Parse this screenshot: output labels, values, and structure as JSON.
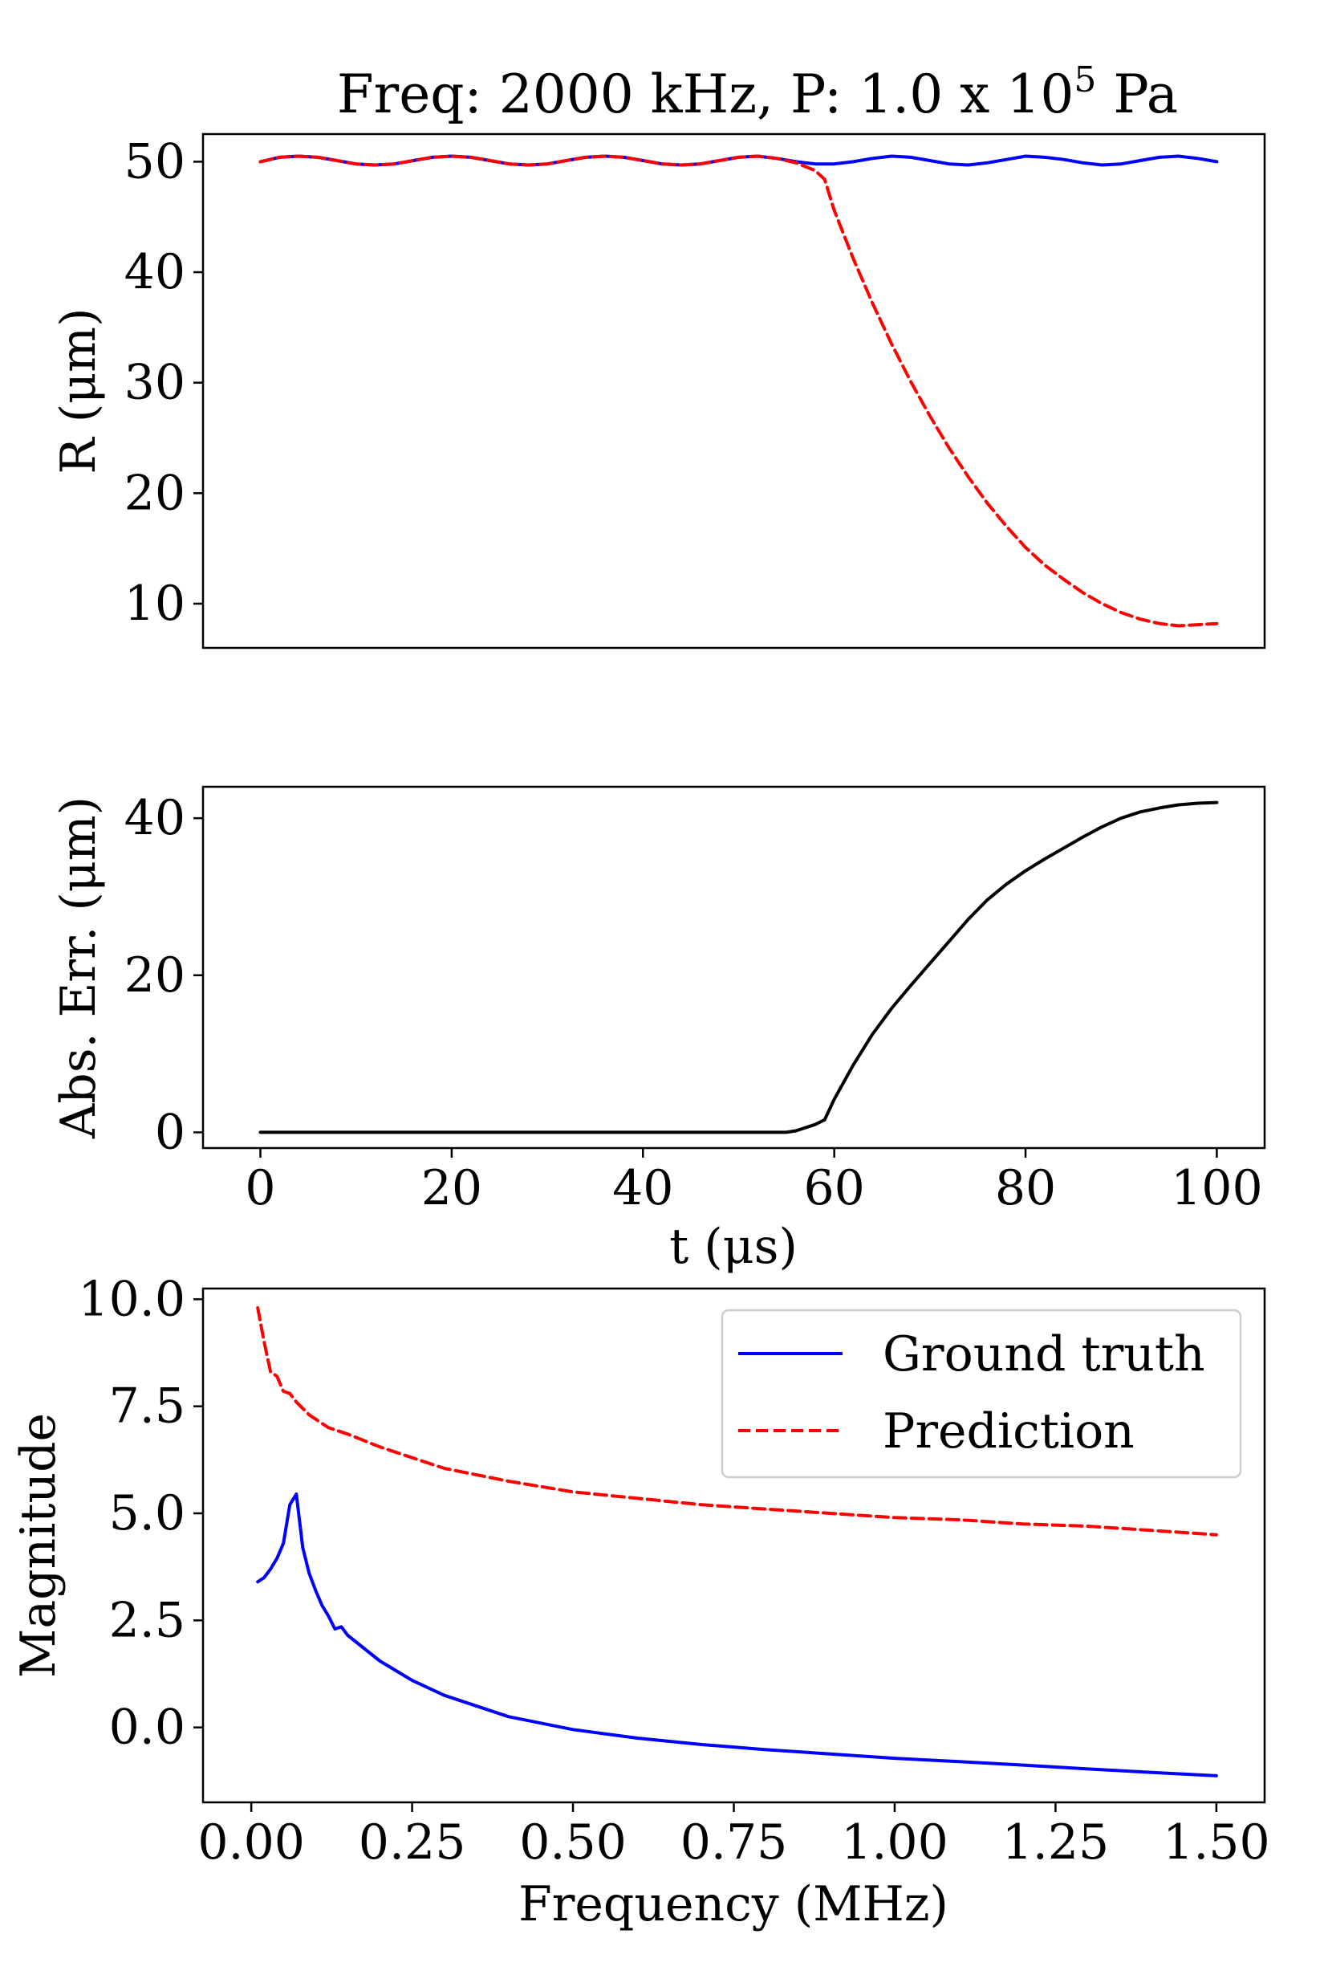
{
  "figure": {
    "title_prefix": "Freq: 2000 kHz, P: 1.0 x ",
    "title_base": "10",
    "title_exponent": "5",
    "title_suffix": " Pa"
  },
  "colors": {
    "ground_truth": "#0000ff",
    "prediction": "#ff0000",
    "abs_error": "#000000"
  },
  "chart_data": [
    {
      "type": "line",
      "name": "radius",
      "title": "Freq: 2000 kHz, P: 1.0 x 10^5 Pa",
      "xlabel": "",
      "ylabel": "R (μm)",
      "xlim": [
        -6,
        105
      ],
      "ylim": [
        6,
        52.5
      ],
      "xticks": [],
      "yticks": [
        10,
        20,
        30,
        40,
        50
      ],
      "ytick_labels": [
        "10",
        "20",
        "30",
        "40",
        "50"
      ],
      "series": [
        {
          "name": "Ground truth",
          "style": "solid",
          "x": [
            0,
            2,
            4,
            6,
            8,
            10,
            12,
            14,
            16,
            18,
            20,
            22,
            24,
            26,
            28,
            30,
            32,
            34,
            36,
            38,
            40,
            42,
            44,
            46,
            48,
            50,
            52,
            54,
            56,
            58,
            60,
            62,
            64,
            66,
            68,
            70,
            72,
            74,
            76,
            78,
            80,
            82,
            84,
            86,
            88,
            90,
            92,
            94,
            96,
            98,
            100
          ],
          "values": [
            50.0,
            50.4,
            50.5,
            50.4,
            50.1,
            49.8,
            49.7,
            49.8,
            50.1,
            50.4,
            50.5,
            50.4,
            50.1,
            49.8,
            49.7,
            49.8,
            50.1,
            50.4,
            50.5,
            50.4,
            50.1,
            49.8,
            49.7,
            49.8,
            50.1,
            50.4,
            50.5,
            50.3,
            50.0,
            49.8,
            49.8,
            50.0,
            50.3,
            50.5,
            50.4,
            50.1,
            49.8,
            49.7,
            49.9,
            50.2,
            50.5,
            50.4,
            50.2,
            49.9,
            49.7,
            49.8,
            50.1,
            50.4,
            50.5,
            50.3,
            50.0
          ]
        },
        {
          "name": "Prediction",
          "style": "dashed",
          "x": [
            0,
            2,
            4,
            6,
            8,
            10,
            12,
            14,
            16,
            18,
            20,
            22,
            24,
            26,
            28,
            30,
            32,
            34,
            36,
            38,
            40,
            42,
            44,
            46,
            48,
            50,
            52,
            54,
            56,
            58,
            59,
            60,
            62,
            64,
            66,
            68,
            70,
            72,
            74,
            76,
            78,
            80,
            82,
            84,
            86,
            88,
            90,
            92,
            94,
            96,
            98,
            100
          ],
          "values": [
            50.0,
            50.4,
            50.5,
            50.4,
            50.1,
            49.8,
            49.7,
            49.8,
            50.1,
            50.4,
            50.5,
            50.4,
            50.1,
            49.8,
            49.7,
            49.8,
            50.1,
            50.4,
            50.5,
            50.4,
            50.1,
            49.8,
            49.7,
            49.8,
            50.1,
            50.4,
            50.5,
            50.3,
            49.9,
            49.2,
            48.4,
            45.6,
            41.2,
            37.2,
            33.5,
            30.1,
            27.0,
            24.1,
            21.5,
            19.1,
            17.0,
            15.1,
            13.5,
            12.2,
            11.0,
            10.0,
            9.2,
            8.6,
            8.2,
            8.0,
            8.1,
            8.2
          ]
        }
      ]
    },
    {
      "type": "line",
      "name": "absolute-error",
      "title": "",
      "xlabel": "t (μs)",
      "ylabel": "Abs. Err. (μm)",
      "xlim": [
        -6,
        105
      ],
      "ylim": [
        -2,
        44
      ],
      "xticks": [
        0,
        20,
        40,
        60,
        80,
        100
      ],
      "xtick_labels": [
        "0",
        "20",
        "40",
        "60",
        "80",
        "100"
      ],
      "yticks": [
        0,
        20,
        40
      ],
      "ytick_labels": [
        "0",
        "20",
        "40"
      ],
      "series": [
        {
          "name": "Abs. Err.",
          "style": "solid",
          "x": [
            0,
            10,
            20,
            30,
            40,
            50,
            55,
            56,
            58,
            59,
            60,
            62,
            64,
            66,
            68,
            70,
            72,
            74,
            76,
            78,
            80,
            82,
            84,
            86,
            88,
            90,
            92,
            94,
            96,
            98,
            100
          ],
          "values": [
            0.0,
            0.0,
            0.0,
            0.0,
            0.0,
            0.0,
            0.0,
            0.2,
            1.0,
            1.6,
            4.2,
            8.6,
            12.5,
            15.8,
            18.7,
            21.5,
            24.3,
            27.1,
            29.6,
            31.6,
            33.3,
            34.8,
            36.2,
            37.6,
            38.9,
            40.0,
            40.8,
            41.3,
            41.7,
            41.9,
            42.0
          ]
        }
      ]
    },
    {
      "type": "line",
      "name": "spectrum",
      "title": "",
      "xlabel": "Frequency (MHz)",
      "ylabel": "Magnitude",
      "xlim": [
        -0.075,
        1.575
      ],
      "ylim": [
        -1.75,
        10.25
      ],
      "xticks": [
        0.0,
        0.25,
        0.5,
        0.75,
        1.0,
        1.25,
        1.5
      ],
      "xtick_labels": [
        "0.00",
        "0.25",
        "0.50",
        "0.75",
        "1.00",
        "1.25",
        "1.50"
      ],
      "yticks": [
        0.0,
        2.5,
        5.0,
        7.5,
        10.0
      ],
      "ytick_labels": [
        "0.0",
        "2.5",
        "5.0",
        "7.5",
        "10.0"
      ],
      "legend": {
        "position": "upper right",
        "entries": [
          "Ground truth",
          "Prediction"
        ]
      },
      "series": [
        {
          "name": "Ground truth",
          "style": "solid",
          "x": [
            0.01,
            0.02,
            0.03,
            0.04,
            0.05,
            0.06,
            0.07,
            0.08,
            0.09,
            0.1,
            0.11,
            0.12,
            0.13,
            0.14,
            0.15,
            0.2,
            0.25,
            0.3,
            0.4,
            0.5,
            0.6,
            0.7,
            0.8,
            0.9,
            1.0,
            1.1,
            1.2,
            1.3,
            1.4,
            1.5
          ],
          "values": [
            3.4,
            3.5,
            3.7,
            3.95,
            4.3,
            5.2,
            5.45,
            4.2,
            3.6,
            3.2,
            2.85,
            2.6,
            2.3,
            2.35,
            2.15,
            1.55,
            1.1,
            0.75,
            0.25,
            -0.05,
            -0.25,
            -0.4,
            -0.52,
            -0.62,
            -0.72,
            -0.8,
            -0.88,
            -0.97,
            -1.05,
            -1.13
          ]
        },
        {
          "name": "Prediction",
          "style": "dashed",
          "x": [
            0.01,
            0.02,
            0.03,
            0.04,
            0.05,
            0.06,
            0.07,
            0.08,
            0.09,
            0.1,
            0.12,
            0.15,
            0.2,
            0.25,
            0.3,
            0.4,
            0.5,
            0.6,
            0.7,
            0.8,
            0.9,
            1.0,
            1.1,
            1.2,
            1.3,
            1.4,
            1.5
          ],
          "values": [
            9.8,
            9.0,
            8.3,
            8.2,
            7.85,
            7.8,
            7.6,
            7.45,
            7.3,
            7.2,
            7.0,
            6.85,
            6.55,
            6.3,
            6.05,
            5.75,
            5.5,
            5.35,
            5.2,
            5.1,
            5.0,
            4.9,
            4.85,
            4.75,
            4.7,
            4.6,
            4.5
          ]
        }
      ]
    }
  ]
}
